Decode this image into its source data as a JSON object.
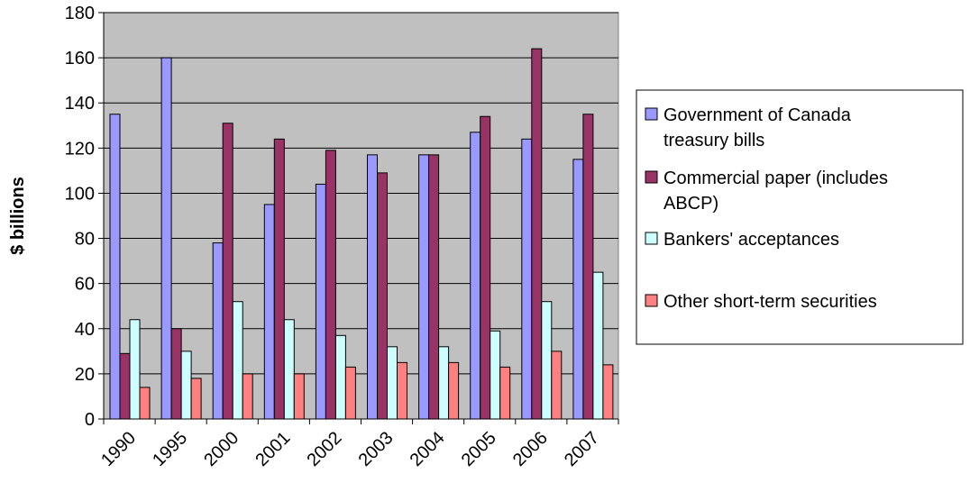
{
  "chart_data": {
    "type": "bar",
    "title": "",
    "xlabel": "",
    "ylabel": "$ billions",
    "ylim": [
      0,
      180
    ],
    "yticks": [
      0,
      20,
      40,
      60,
      80,
      100,
      120,
      140,
      160,
      180
    ],
    "grid": true,
    "legend_position": "right",
    "plot_background": "#c0c0c0",
    "categories": [
      "1990",
      "1995",
      "2000",
      "2001",
      "2002",
      "2003",
      "2004",
      "2005",
      "2006",
      "2007"
    ],
    "series": [
      {
        "name": "Government of Canada treasury bills",
        "legend_lines": [
          "Government of Canada",
          "treasury bills"
        ],
        "color": "#9999ff",
        "values": [
          135,
          160,
          78,
          95,
          104,
          117,
          117,
          127,
          124,
          115
        ]
      },
      {
        "name": "Commercial paper (includes ABCP)",
        "legend_lines": [
          "Commercial paper (includes",
          "ABCP)"
        ],
        "color": "#993366",
        "values": [
          29,
          40,
          131,
          124,
          119,
          109,
          117,
          134,
          164,
          135
        ]
      },
      {
        "name": "Bankers' acceptances",
        "legend_lines": [
          "Bankers' acceptances"
        ],
        "color": "#ccffff",
        "values": [
          44,
          30,
          52,
          44,
          37,
          32,
          32,
          39,
          52,
          65
        ]
      },
      {
        "name": "Other short-term securities",
        "legend_lines": [
          "Other short-term securities"
        ],
        "color": "#ff8080",
        "values": [
          14,
          18,
          20,
          20,
          23,
          25,
          25,
          23,
          30,
          24
        ]
      }
    ]
  }
}
